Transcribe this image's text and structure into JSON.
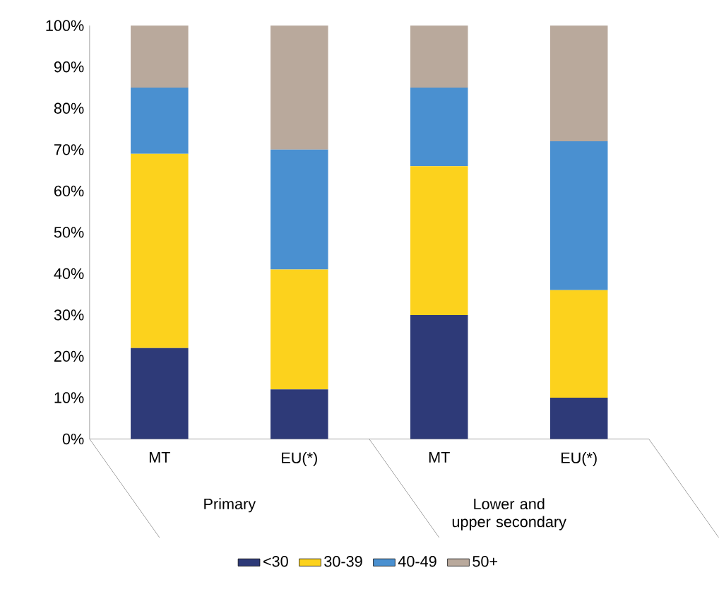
{
  "chart_data": {
    "type": "bar",
    "stacked": true,
    "categories": [
      "MT",
      "EU(*)",
      "MT",
      "EU(*)"
    ],
    "series": [
      {
        "name": "<30",
        "color": "#2e3a78",
        "values": [
          22,
          12,
          30,
          10
        ]
      },
      {
        "name": "30-39",
        "color": "#fcd21d",
        "values": [
          47,
          29,
          36,
          26
        ]
      },
      {
        "name": "40-49",
        "color": "#4a90d0",
        "values": [
          16,
          29,
          19,
          36
        ]
      },
      {
        "name": "50+",
        "color": "#b9a99c",
        "values": [
          15,
          30,
          15,
          28
        ]
      }
    ],
    "ylim": [
      0,
      100
    ],
    "yticks": [
      {
        "value": 0,
        "label": "0%"
      },
      {
        "value": 10,
        "label": "10%"
      },
      {
        "value": 20,
        "label": "20%"
      },
      {
        "value": 30,
        "label": "30%"
      },
      {
        "value": 40,
        "label": "40%"
      },
      {
        "value": 50,
        "label": "50%"
      },
      {
        "value": 60,
        "label": "60%"
      },
      {
        "value": 70,
        "label": "70%"
      },
      {
        "value": 80,
        "label": "80%"
      },
      {
        "value": 90,
        "label": "90%"
      },
      {
        "value": 100,
        "label": "100%"
      }
    ],
    "annotations": [
      "Primary",
      "Lower and upper secondary"
    ],
    "legend": "bottom"
  }
}
